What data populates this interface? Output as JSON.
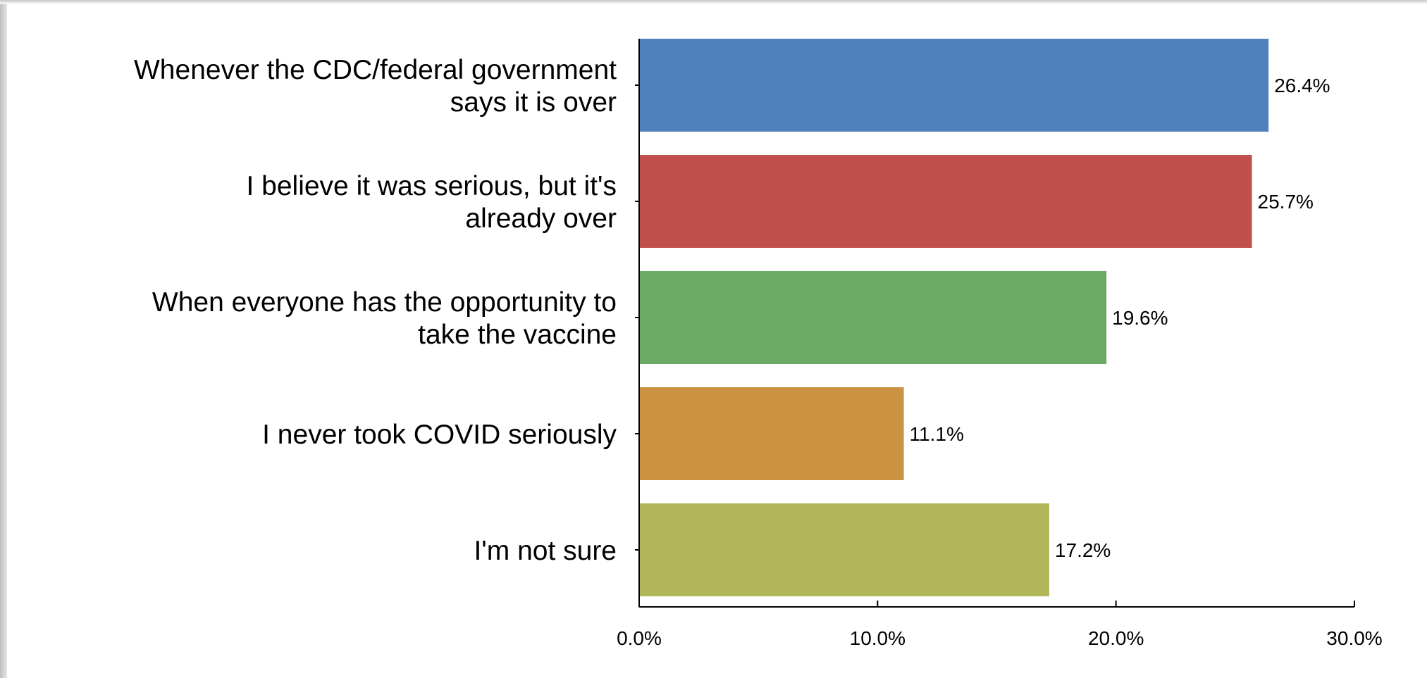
{
  "chart_data": {
    "type": "bar",
    "orientation": "horizontal",
    "categories": [
      [
        "Whenever the CDC/federal government",
        "says it is over"
      ],
      [
        "I believe it was serious, but it's",
        "already over"
      ],
      [
        "When everyone has the opportunity to",
        "take the vaccine"
      ],
      [
        "I never took COVID seriously"
      ],
      [
        "I'm not sure"
      ]
    ],
    "values": [
      26.4,
      25.7,
      19.6,
      11.1,
      17.2
    ],
    "value_labels": [
      "26.4%",
      "25.7%",
      "19.6%",
      "11.1%",
      "17.2%"
    ],
    "colors": [
      "#4F81BD",
      "#C0504D",
      "#6BAA64",
      "#CB9242",
      "#B2B65B"
    ],
    "xlim": [
      0,
      30
    ],
    "xticks": [
      0,
      10,
      20,
      30
    ],
    "xtick_labels": [
      "0.0%",
      "10.0%",
      "20.0%",
      "30.0%"
    ],
    "title": "",
    "xlabel": "",
    "ylabel": "",
    "grid": false,
    "legend": "none"
  }
}
